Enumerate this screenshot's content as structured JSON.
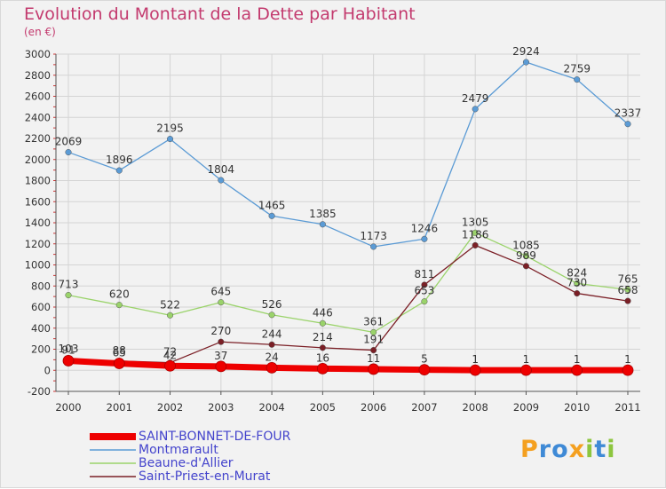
{
  "title": "Evolution du Montant de la Dette par Habitant",
  "unit_label": "(en €)",
  "logo": {
    "letters": [
      "P",
      "r",
      "o",
      "x",
      "i",
      "t",
      "i"
    ],
    "colors": [
      "#f4a020",
      "#3f8ad6",
      "#3f8ad6",
      "#f4a020",
      "#8dc63f",
      "#3f8ad6",
      "#8dc63f"
    ]
  },
  "chart_data": {
    "type": "line",
    "title": "Evolution du Montant de la Dette par Habitant",
    "ylabel": "(en €)",
    "xlabel": "",
    "x": [
      "2000",
      "2001",
      "2002",
      "2003",
      "2004",
      "2005",
      "2006",
      "2007",
      "2008",
      "2009",
      "2010",
      "2011"
    ],
    "ylim": [
      -200,
      3000
    ],
    "yticks": [
      -200,
      0,
      200,
      400,
      600,
      800,
      1000,
      1200,
      1400,
      1600,
      1800,
      2000,
      2200,
      2400,
      2600,
      2800,
      3000
    ],
    "grid": true,
    "legend_position": "bottom-left",
    "series": [
      {
        "name": "SAINT-BONNET-DE-FOUR",
        "color": "#ee0000",
        "values": [
          91,
          65,
          42,
          37,
          24,
          16,
          11,
          5,
          1,
          1,
          1,
          1
        ]
      },
      {
        "name": "Montmarault",
        "color": "#5b9bd5",
        "values": [
          2069,
          1896,
          2195,
          1804,
          1465,
          1385,
          1173,
          1246,
          2479,
          2924,
          2759,
          2337
        ]
      },
      {
        "name": "Beaune-d'Allier",
        "color": "#9ad36a",
        "values": [
          713,
          620,
          522,
          645,
          526,
          446,
          361,
          653,
          1305,
          1085,
          824,
          765
        ]
      },
      {
        "name": "Saint-Priest-en-Murat",
        "color": "#7b1f26",
        "values": [
          103,
          88,
          72,
          270,
          244,
          214,
          191,
          811,
          1186,
          989,
          730,
          658
        ]
      }
    ]
  }
}
